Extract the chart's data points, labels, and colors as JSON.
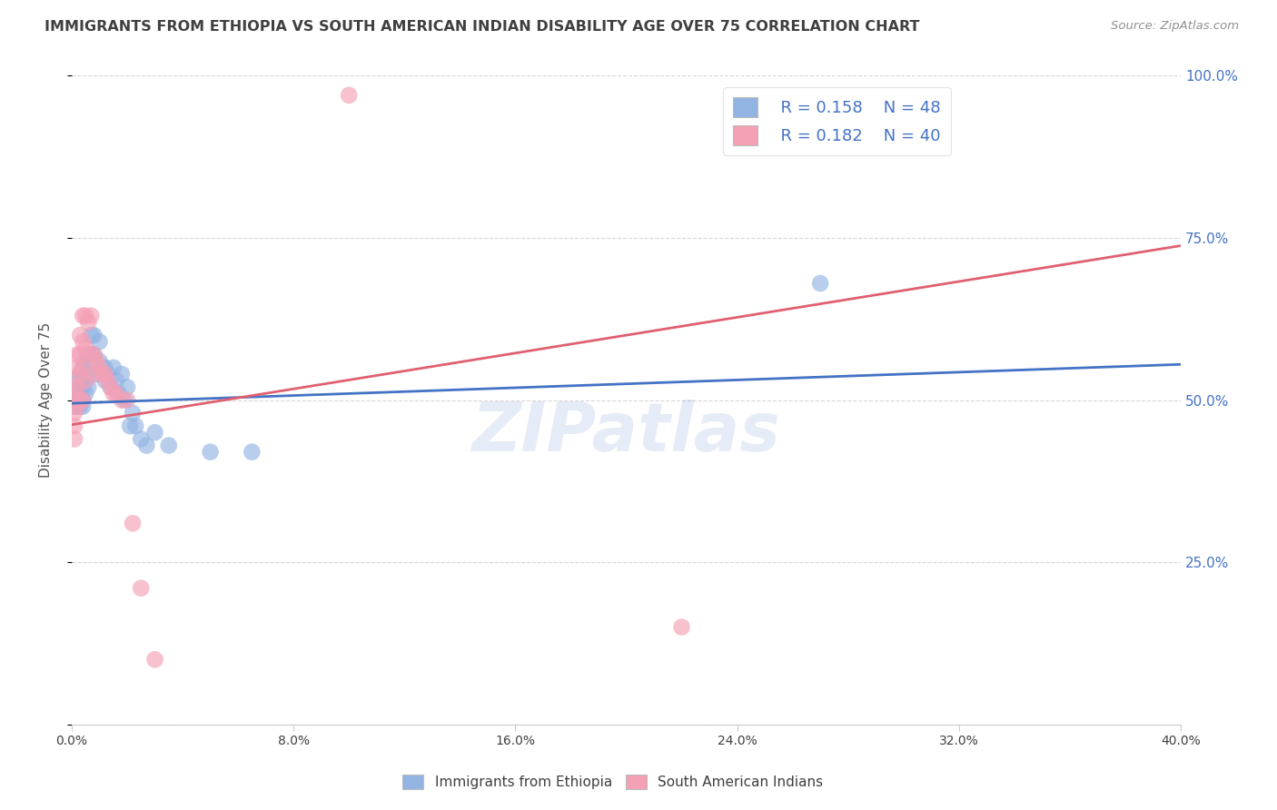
{
  "title": "IMMIGRANTS FROM ETHIOPIA VS SOUTH AMERICAN INDIAN DISABILITY AGE OVER 75 CORRELATION CHART",
  "source": "Source: ZipAtlas.com",
  "ylabel": "Disability Age Over 75",
  "xlim": [
    0.0,
    0.4
  ],
  "ylim": [
    0.0,
    1.0
  ],
  "xticks": [
    0.0,
    0.08,
    0.16,
    0.24,
    0.32,
    0.4
  ],
  "xticklabels": [
    "0.0%",
    "8.0%",
    "16.0%",
    "24.0%",
    "32.0%",
    "40.0%"
  ],
  "yticks_right": [
    0.0,
    0.25,
    0.5,
    0.75,
    1.0
  ],
  "yticklabels_right": [
    "",
    "25.0%",
    "50.0%",
    "75.0%",
    "100.0%"
  ],
  "watermark": "ZIPatlas",
  "legend_R1": "R = 0.158",
  "legend_N1": "N = 48",
  "legend_R2": "R = 0.182",
  "legend_N2": "N = 40",
  "blue_color": "#92b4e3",
  "pink_color": "#f4a0b5",
  "line_blue": "#4472c4",
  "line_pink": "#e06070",
  "legend_text_color": "#4472c4",
  "title_color": "#404040",
  "source_color": "#909090",
  "axis_right_color": "#4472c4",
  "grid_color": "#cccccc",
  "blue_points": [
    [
      0.001,
      0.51
    ],
    [
      0.001,
      0.5
    ],
    [
      0.001,
      0.49
    ],
    [
      0.002,
      0.53
    ],
    [
      0.002,
      0.51
    ],
    [
      0.002,
      0.49
    ],
    [
      0.003,
      0.54
    ],
    [
      0.003,
      0.52
    ],
    [
      0.003,
      0.5
    ],
    [
      0.003,
      0.49
    ],
    [
      0.004,
      0.55
    ],
    [
      0.004,
      0.52
    ],
    [
      0.004,
      0.5
    ],
    [
      0.004,
      0.49
    ],
    [
      0.005,
      0.56
    ],
    [
      0.005,
      0.53
    ],
    [
      0.005,
      0.51
    ],
    [
      0.006,
      0.57
    ],
    [
      0.006,
      0.54
    ],
    [
      0.006,
      0.52
    ],
    [
      0.007,
      0.6
    ],
    [
      0.007,
      0.57
    ],
    [
      0.008,
      0.6
    ],
    [
      0.008,
      0.57
    ],
    [
      0.009,
      0.54
    ],
    [
      0.01,
      0.59
    ],
    [
      0.01,
      0.56
    ],
    [
      0.011,
      0.55
    ],
    [
      0.012,
      0.55
    ],
    [
      0.012,
      0.53
    ],
    [
      0.013,
      0.54
    ],
    [
      0.014,
      0.52
    ],
    [
      0.015,
      0.55
    ],
    [
      0.016,
      0.53
    ],
    [
      0.017,
      0.51
    ],
    [
      0.018,
      0.54
    ],
    [
      0.019,
      0.5
    ],
    [
      0.02,
      0.52
    ],
    [
      0.021,
      0.46
    ],
    [
      0.022,
      0.48
    ],
    [
      0.023,
      0.46
    ],
    [
      0.025,
      0.44
    ],
    [
      0.027,
      0.43
    ],
    [
      0.03,
      0.45
    ],
    [
      0.035,
      0.43
    ],
    [
      0.05,
      0.42
    ],
    [
      0.065,
      0.42
    ],
    [
      0.27,
      0.68
    ]
  ],
  "pink_points": [
    [
      0.001,
      0.52
    ],
    [
      0.001,
      0.5
    ],
    [
      0.001,
      0.48
    ],
    [
      0.001,
      0.46
    ],
    [
      0.002,
      0.57
    ],
    [
      0.002,
      0.55
    ],
    [
      0.002,
      0.52
    ],
    [
      0.002,
      0.49
    ],
    [
      0.003,
      0.6
    ],
    [
      0.003,
      0.57
    ],
    [
      0.003,
      0.54
    ],
    [
      0.003,
      0.5
    ],
    [
      0.004,
      0.63
    ],
    [
      0.004,
      0.59
    ],
    [
      0.004,
      0.55
    ],
    [
      0.004,
      0.5
    ],
    [
      0.005,
      0.63
    ],
    [
      0.005,
      0.58
    ],
    [
      0.005,
      0.53
    ],
    [
      0.006,
      0.62
    ],
    [
      0.007,
      0.63
    ],
    [
      0.007,
      0.57
    ],
    [
      0.008,
      0.57
    ],
    [
      0.008,
      0.54
    ],
    [
      0.009,
      0.56
    ],
    [
      0.01,
      0.55
    ],
    [
      0.011,
      0.54
    ],
    [
      0.012,
      0.54
    ],
    [
      0.013,
      0.53
    ],
    [
      0.014,
      0.52
    ],
    [
      0.015,
      0.51
    ],
    [
      0.016,
      0.51
    ],
    [
      0.018,
      0.5
    ],
    [
      0.02,
      0.5
    ],
    [
      0.022,
      0.31
    ],
    [
      0.025,
      0.21
    ],
    [
      0.03,
      0.1
    ],
    [
      0.1,
      0.97
    ],
    [
      0.22,
      0.15
    ],
    [
      0.001,
      0.44
    ]
  ],
  "blue_trendline": [
    [
      0.0,
      0.495
    ],
    [
      0.4,
      0.555
    ]
  ],
  "pink_trendline": [
    [
      0.0,
      0.462
    ],
    [
      0.4,
      0.738
    ]
  ]
}
